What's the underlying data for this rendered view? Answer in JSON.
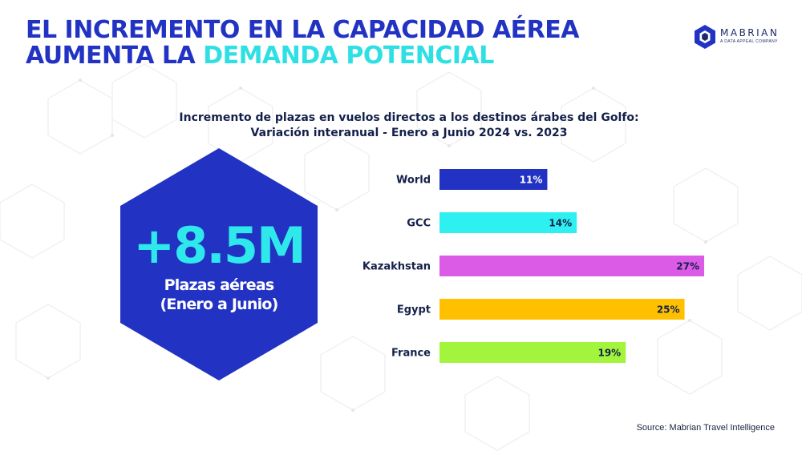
{
  "headline": {
    "line1": "EL INCREMENTO EN LA CAPACIDAD AÉREA",
    "line2_part1": "AUMENTA LA ",
    "line2_part2": "DEMANDA POTENCIAL"
  },
  "logo": {
    "name": "MABRIAN",
    "tagline": "A DATA APPEAL COMPANY",
    "icon": "hexagon-logo-icon"
  },
  "highlight": {
    "value": "+8.5M",
    "caption_line1": "Plazas aéreas",
    "caption_line2": "(Enero a Junio)"
  },
  "source": "Source: Mabrian Travel Intelligence",
  "colors": {
    "primary_blue": "#2233c4",
    "accent_cyan": "#2ee0e4",
    "hexagon_fill": "#2233c4"
  },
  "chart_data": {
    "type": "bar",
    "orientation": "horizontal",
    "title_line1": "Incremento de plazas en vuelos directos a los destinos árabes del Golfo:",
    "title_line2": "Variación interanual - Enero a Junio 2024 vs. 2023",
    "categories": [
      "World",
      "GCC",
      "Kazakhstan",
      "Egypt",
      "France"
    ],
    "values": [
      11,
      14,
      27,
      25,
      19
    ],
    "value_labels": [
      "11%",
      "14%",
      "27%",
      "25%",
      "19%"
    ],
    "bar_colors": [
      "#2233c4",
      "#2ef0f0",
      "#dc5be6",
      "#ffc000",
      "#a2f53c"
    ],
    "unit": "%",
    "xlim": [
      0,
      27
    ],
    "grid": false,
    "legend": "none"
  }
}
